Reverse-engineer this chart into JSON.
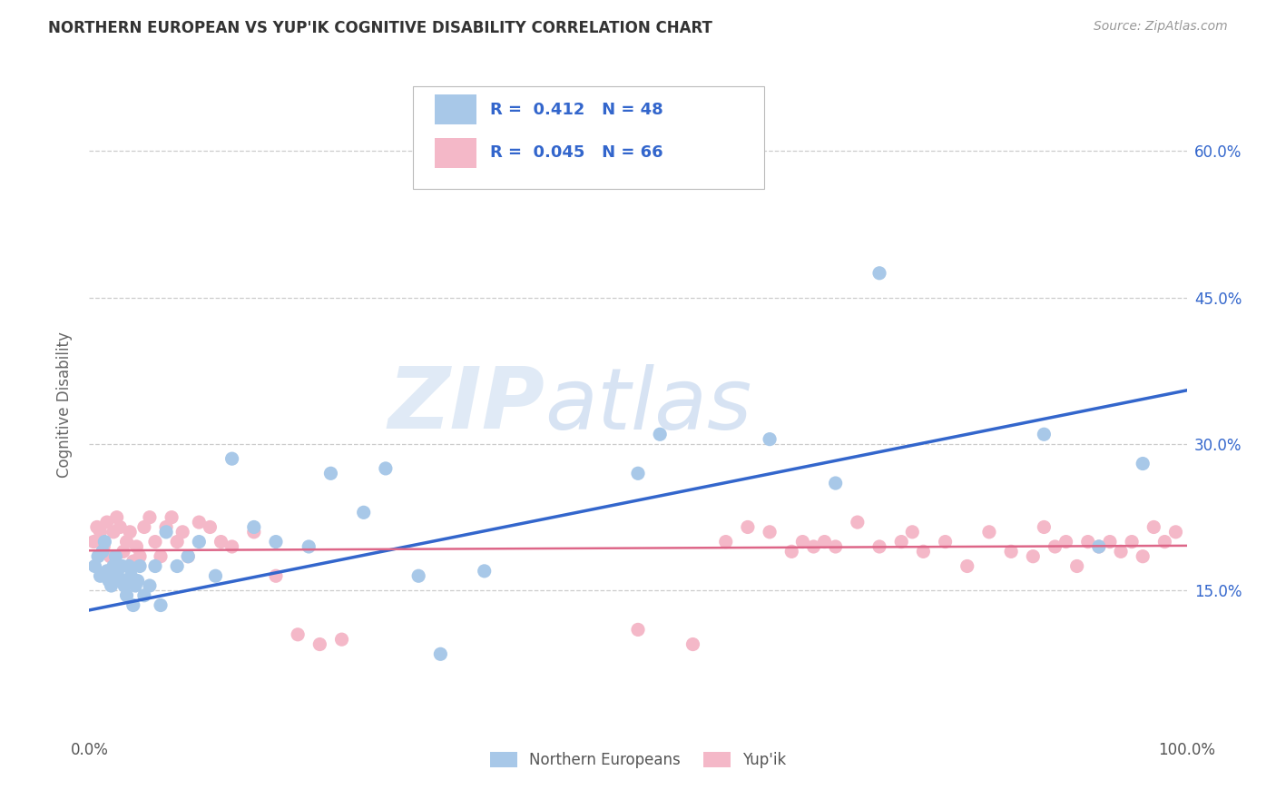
{
  "title": "NORTHERN EUROPEAN VS YUP'IK COGNITIVE DISABILITY CORRELATION CHART",
  "source": "Source: ZipAtlas.com",
  "ylabel": "Cognitive Disability",
  "xlim": [
    0,
    1.0
  ],
  "ylim": [
    0.0,
    0.68
  ],
  "yticks": [
    0.15,
    0.3,
    0.45,
    0.6
  ],
  "yticklabels": [
    "15.0%",
    "30.0%",
    "45.0%",
    "60.0%"
  ],
  "xtick_positions": [
    0.0,
    1.0
  ],
  "xtick_labels": [
    "0.0%",
    "100.0%"
  ],
  "blue_R": 0.412,
  "blue_N": 48,
  "pink_R": 0.045,
  "pink_N": 66,
  "blue_color": "#a8c8e8",
  "pink_color": "#f4b8c8",
  "blue_line_color": "#3366cc",
  "pink_line_color": "#dd6688",
  "grid_color": "#cccccc",
  "background_color": "#ffffff",
  "watermark_zip": "ZIP",
  "watermark_atlas": "atlas",
  "blue_line_start_y": 0.13,
  "blue_line_end_y": 0.355,
  "pink_line_start_y": 0.191,
  "pink_line_end_y": 0.196,
  "blue_scatter_x": [
    0.005,
    0.008,
    0.01,
    0.012,
    0.014,
    0.016,
    0.018,
    0.02,
    0.022,
    0.024,
    0.026,
    0.028,
    0.03,
    0.032,
    0.034,
    0.036,
    0.038,
    0.04,
    0.042,
    0.044,
    0.046,
    0.05,
    0.055,
    0.06,
    0.065,
    0.07,
    0.08,
    0.09,
    0.1,
    0.115,
    0.13,
    0.15,
    0.17,
    0.2,
    0.22,
    0.25,
    0.27,
    0.3,
    0.32,
    0.36,
    0.5,
    0.52,
    0.62,
    0.68,
    0.72,
    0.87,
    0.92,
    0.96
  ],
  "blue_scatter_y": [
    0.175,
    0.185,
    0.165,
    0.19,
    0.2,
    0.17,
    0.16,
    0.155,
    0.175,
    0.185,
    0.165,
    0.16,
    0.175,
    0.155,
    0.145,
    0.175,
    0.165,
    0.135,
    0.155,
    0.16,
    0.175,
    0.145,
    0.155,
    0.175,
    0.135,
    0.21,
    0.175,
    0.185,
    0.2,
    0.165,
    0.285,
    0.215,
    0.2,
    0.195,
    0.27,
    0.23,
    0.275,
    0.165,
    0.085,
    0.17,
    0.27,
    0.31,
    0.305,
    0.26,
    0.475,
    0.31,
    0.195,
    0.28
  ],
  "pink_scatter_x": [
    0.004,
    0.007,
    0.01,
    0.013,
    0.016,
    0.019,
    0.022,
    0.025,
    0.028,
    0.031,
    0.034,
    0.037,
    0.04,
    0.043,
    0.046,
    0.05,
    0.055,
    0.06,
    0.065,
    0.07,
    0.075,
    0.08,
    0.085,
    0.09,
    0.1,
    0.11,
    0.12,
    0.13,
    0.15,
    0.17,
    0.19,
    0.21,
    0.23,
    0.5,
    0.55,
    0.58,
    0.6,
    0.62,
    0.64,
    0.65,
    0.66,
    0.67,
    0.68,
    0.7,
    0.72,
    0.74,
    0.75,
    0.76,
    0.78,
    0.8,
    0.82,
    0.84,
    0.86,
    0.87,
    0.88,
    0.89,
    0.9,
    0.91,
    0.92,
    0.93,
    0.94,
    0.95,
    0.96,
    0.97,
    0.98,
    0.99
  ],
  "pink_scatter_y": [
    0.2,
    0.215,
    0.21,
    0.195,
    0.22,
    0.185,
    0.21,
    0.225,
    0.215,
    0.19,
    0.2,
    0.21,
    0.18,
    0.195,
    0.185,
    0.215,
    0.225,
    0.2,
    0.185,
    0.215,
    0.225,
    0.2,
    0.21,
    0.185,
    0.22,
    0.215,
    0.2,
    0.195,
    0.21,
    0.165,
    0.105,
    0.095,
    0.1,
    0.11,
    0.095,
    0.2,
    0.215,
    0.21,
    0.19,
    0.2,
    0.195,
    0.2,
    0.195,
    0.22,
    0.195,
    0.2,
    0.21,
    0.19,
    0.2,
    0.175,
    0.21,
    0.19,
    0.185,
    0.215,
    0.195,
    0.2,
    0.175,
    0.2,
    0.195,
    0.2,
    0.19,
    0.2,
    0.185,
    0.215,
    0.2,
    0.21
  ]
}
